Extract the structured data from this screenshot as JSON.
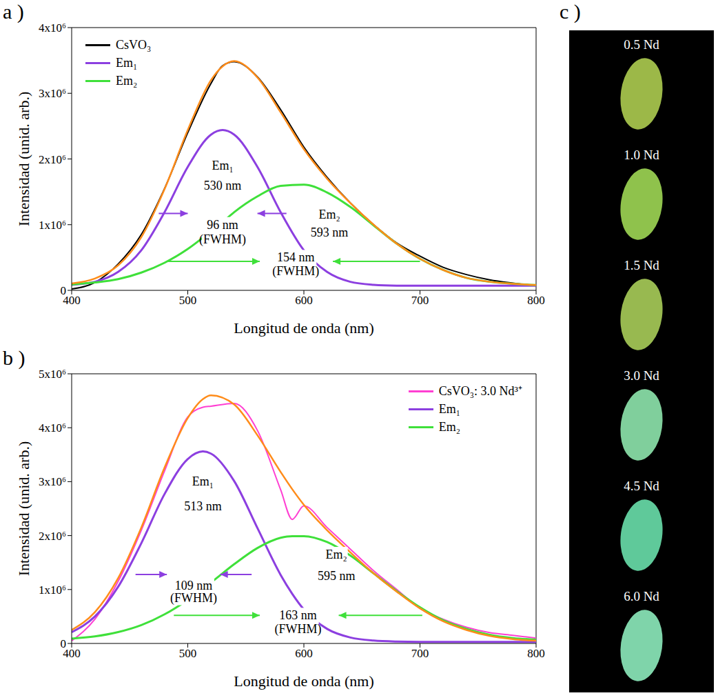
{
  "chart_data": [
    {
      "type": "line",
      "title": "a )",
      "x_label": "Longitud de onda (nm)",
      "y_label": "Intensidad (unid. arb.)",
      "x": [
        400,
        420,
        440,
        460,
        480,
        500,
        520,
        530,
        540,
        560,
        580,
        600,
        620,
        640,
        660,
        680,
        700,
        720,
        740,
        760,
        780,
        800
      ],
      "series": [
        {
          "name": "CsVO₃",
          "color": "#000000",
          "values": [
            20000,
            120000,
            400000,
            850000,
            1550000,
            2400000,
            3150000,
            3420000,
            3480000,
            3250000,
            2750000,
            2180000,
            1720000,
            1330000,
            1000000,
            720000,
            520000,
            350000,
            240000,
            160000,
            110000,
            70000
          ]
        },
        {
          "name": "Em₁",
          "color": "#8c3fe0",
          "values": [
            85000,
            130000,
            280000,
            610000,
            1190000,
            1880000,
            2370000,
            2440000,
            2370000,
            1880000,
            1190000,
            610000,
            280000,
            130000,
            85000,
            72000,
            70000,
            70000,
            70000,
            70000,
            70000,
            70000
          ]
        },
        {
          "name": "Em₂",
          "color": "#3fe03a",
          "values": [
            90000,
            120000,
            170000,
            270000,
            420000,
            630000,
            900000,
            1040000,
            1190000,
            1430000,
            1590000,
            1610000,
            1490000,
            1270000,
            990000,
            710000,
            480000,
            310000,
            190000,
            130000,
            100000,
            80000
          ]
        },
        {
          "color": "#ff8c1a",
          "values": [
            105000,
            180000,
            380000,
            810000,
            1540000,
            2440000,
            3200000,
            3410000,
            3490000,
            3240000,
            2710000,
            2150000,
            1700000,
            1330000,
            1000000,
            710000,
            480000,
            310000,
            190000,
            130000,
            100000,
            80000
          ]
        }
      ],
      "xlim": [
        400,
        800
      ],
      "xticks": [
        400,
        500,
        600,
        700,
        800
      ],
      "ylim": [
        0,
        4000000
      ],
      "yticks": [
        0,
        {
          "value": 1000000,
          "label": "1x10⁶"
        },
        {
          "value": 2000000,
          "label": "2x10⁶"
        },
        {
          "value": 3000000,
          "label": "3x10⁶"
        },
        {
          "value": 4000000,
          "label": "4x10⁶"
        }
      ],
      "legend": "upper left",
      "annotations": [
        {
          "text": "Em₁",
          "x": 530,
          "y": 1900000
        },
        {
          "text": "530 nm",
          "x": 530,
          "y": 1600000
        },
        {
          "text": "96 nm",
          "x": 530,
          "y": 1000000
        },
        {
          "text": "(FWHM)",
          "x": 530,
          "y": 780000
        },
        {
          "text": "Em₂",
          "x": 622,
          "y": 1150000
        },
        {
          "text": "593 nm",
          "x": 622,
          "y": 880000
        },
        {
          "text": "154 nm",
          "x": 593,
          "y": 500000
        },
        {
          "text": "(FWHM)",
          "x": 593,
          "y": 290000
        }
      ],
      "arrows": [
        {
          "x1": 475,
          "x2": 500,
          "y": 1170000,
          "color": "#8c3fe0"
        },
        {
          "x1": 585,
          "x2": 560,
          "y": 1170000,
          "color": "#8c3fe0"
        },
        {
          "x1": 482,
          "x2": 562,
          "y": 440000,
          "color": "#3fe03a"
        },
        {
          "x1": 700,
          "x2": 625,
          "y": 440000,
          "color": "#3fe03a"
        }
      ]
    },
    {
      "type": "line",
      "title": "b )",
      "x_label": "Longitud de onda (nm)",
      "y_label": "Intensidad (unid. arb.)",
      "x": [
        400,
        420,
        440,
        460,
        480,
        500,
        513,
        520,
        540,
        560,
        580,
        590,
        600,
        620,
        640,
        660,
        680,
        700,
        720,
        740,
        760,
        780,
        800
      ],
      "series": [
        {
          "name": "CsVO₃: 3.0 Nd³⁺",
          "color": "#ff3fd2",
          "values": [
            50000,
            450000,
            1150000,
            2100000,
            3200000,
            4200000,
            4380000,
            4400000,
            4450000,
            3950000,
            2850000,
            2300000,
            2550000,
            2150000,
            1750000,
            1350000,
            1000000,
            650000,
            450000,
            300000,
            200000,
            150000,
            100000
          ]
        },
        {
          "name": "Em₁",
          "color": "#8c3fe0",
          "values": [
            210000,
            500000,
            1050000,
            1860000,
            2770000,
            3420000,
            3560000,
            3520000,
            3010000,
            2140000,
            1270000,
            920000,
            630000,
            270000,
            110000,
            53000,
            35000,
            30000,
            30000,
            30000,
            30000,
            30000,
            30000
          ]
        },
        {
          "name": "Em₂",
          "color": "#3fe03a",
          "values": [
            90000,
            130000,
            210000,
            340000,
            540000,
            810000,
            1020000,
            1130000,
            1470000,
            1770000,
            1960000,
            1990000,
            1990000,
            1880000,
            1630000,
            1300000,
            970000,
            670000,
            430000,
            270000,
            160000,
            100000,
            70000
          ]
        },
        {
          "color": "#ff8c1a",
          "values": [
            250000,
            580000,
            1210000,
            2150000,
            3260000,
            4180000,
            4530000,
            4600000,
            4430000,
            3860000,
            3180000,
            2860000,
            2570000,
            2100000,
            1690000,
            1300000,
            960000,
            650000,
            410000,
            250000,
            140000,
            80000,
            50000
          ]
        }
      ],
      "xlim": [
        400,
        800
      ],
      "xticks": [
        400,
        500,
        600,
        700,
        800
      ],
      "ylim": [
        0,
        5000000
      ],
      "yticks": [
        0,
        {
          "value": 1000000,
          "label": "1x10⁶"
        },
        {
          "value": 2000000,
          "label": "2x10⁶"
        },
        {
          "value": 3000000,
          "label": "3x10⁶"
        },
        {
          "value": 4000000,
          "label": "4x10⁶"
        },
        {
          "value": 5000000,
          "label": "5x10⁶"
        }
      ],
      "legend": "upper right",
      "annotations": [
        {
          "text": "Em₁",
          "x": 513,
          "y": 3000000
        },
        {
          "text": "513 nm",
          "x": 513,
          "y": 2550000
        },
        {
          "text": "109 nm",
          "x": 505,
          "y": 1080000
        },
        {
          "text": "(FWHM)",
          "x": 505,
          "y": 850000
        },
        {
          "text": "Em₂",
          "x": 628,
          "y": 1650000
        },
        {
          "text": "595 nm",
          "x": 628,
          "y": 1250000
        },
        {
          "text": "163 nm",
          "x": 595,
          "y": 520000
        },
        {
          "text": "(FWHM)",
          "x": 595,
          "y": 270000
        }
      ],
      "arrows": [
        {
          "x1": 455,
          "x2": 482,
          "y": 1280000,
          "color": "#8c3fe0"
        },
        {
          "x1": 555,
          "x2": 528,
          "y": 1280000,
          "color": "#8c3fe0"
        },
        {
          "x1": 488,
          "x2": 562,
          "y": 520000,
          "color": "#3fe03a"
        },
        {
          "x1": 702,
          "x2": 630,
          "y": 520000,
          "color": "#3fe03a"
        }
      ]
    }
  ],
  "panel_c": {
    "title": "c )",
    "samples": [
      {
        "label": "0.5 Nd",
        "color": "#9cb848"
      },
      {
        "label": "1.0 Nd",
        "color": "#8fc24c"
      },
      {
        "label": "1.5 Nd",
        "color": "#98b950"
      },
      {
        "label": "3.0 Nd",
        "color": "#80cf9c"
      },
      {
        "label": "4.5 Nd",
        "color": "#5fc99a"
      },
      {
        "label": "6.0 Nd",
        "color": "#7fd4aa"
      }
    ]
  }
}
